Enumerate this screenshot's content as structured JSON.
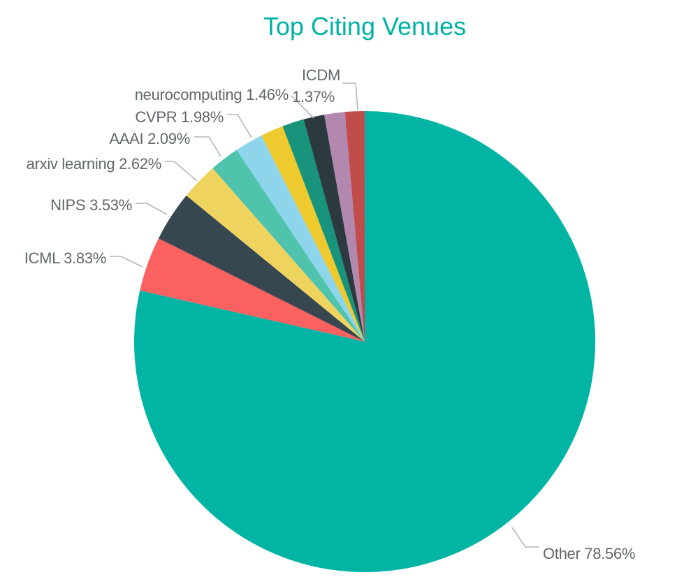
{
  "title": "Top Citing Venues",
  "colors": {
    "title_text": "#00B2A3",
    "label_text": "#60686C",
    "leader_line": "#B4B7B7",
    "background": "#FFFFFF"
  },
  "chart_data": {
    "type": "pie",
    "title": "Top Citing Venues",
    "unit": "%",
    "start_angle_deg": 0,
    "direction": "clockwise",
    "legend": "none",
    "slices": [
      {
        "label": "Other",
        "value": 78.56,
        "display": "Other 78.56%",
        "color": "#01B4A4",
        "labeled": true,
        "estimated": false
      },
      {
        "label": "ICML",
        "value": 3.83,
        "display": "ICML 3.83%",
        "color": "#FA6160",
        "labeled": true,
        "estimated": false
      },
      {
        "label": "NIPS",
        "value": 3.53,
        "display": "NIPS 3.53%",
        "color": "#36474F",
        "labeled": true,
        "estimated": false
      },
      {
        "label": "arxiv learning",
        "value": 2.62,
        "display": "arxiv learning 2.62%",
        "color": "#EFD35F",
        "labeled": true,
        "estimated": false
      },
      {
        "label": "AAAI",
        "value": 2.09,
        "display": "AAAI 2.09%",
        "color": "#4FC3AB",
        "labeled": true,
        "estimated": false
      },
      {
        "label": "CVPR",
        "value": 1.98,
        "display": "CVPR 1.98%",
        "color": "#8ED5EC",
        "labeled": true,
        "estimated": false
      },
      {
        "label": "",
        "value": 1.59,
        "display": "",
        "color": "#EFCA2E",
        "labeled": false,
        "estimated": true
      },
      {
        "label": "",
        "value": 1.53,
        "display": "",
        "color": "#18947C",
        "labeled": false,
        "estimated": true
      },
      {
        "label": "neurocomputing",
        "value": 1.46,
        "display": "neurocomputing 1.46%",
        "color": "#2C393F",
        "labeled": true,
        "estimated": false
      },
      {
        "label": "",
        "value": 1.44,
        "display": "",
        "color": "#B288AF",
        "labeled": false,
        "estimated": true
      },
      {
        "label": "ICDM",
        "value": 1.37,
        "display": "ICDM 1.37%",
        "color": "#C04C4B",
        "labeled": true,
        "estimated": false
      }
    ]
  }
}
